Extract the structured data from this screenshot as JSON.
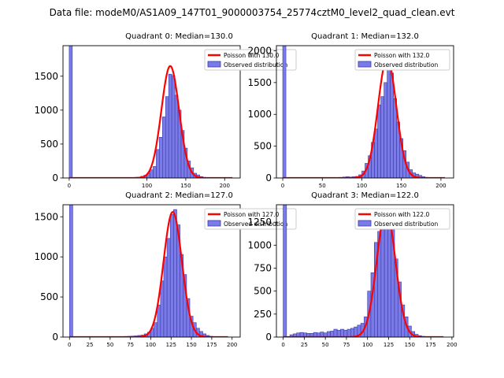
{
  "suptitle": "Data file: modeM0/AS1A09_147T01_9000003754_25774cztM0_level2_quad_clean.evt",
  "colors": {
    "hist_fill": "#7b7be8",
    "hist_edge": "#3a3aa8",
    "poisson": "#ff0000"
  },
  "chart_data": [
    {
      "type": "bar",
      "title": "Quadrant 0: Median=130.0",
      "legend": [
        "Poisson with 130.0",
        "Observed distribution"
      ],
      "legend_loc": "top-right",
      "xlim": [
        -8,
        220
      ],
      "ylim": [
        0,
        1950
      ],
      "xticks": [
        0,
        100,
        150,
        200
      ],
      "yticks": [
        0,
        500,
        1000,
        1500
      ],
      "mu": 130,
      "poisson_peak": 1650,
      "poisson_x": [
        0,
        210
      ],
      "bin_width": 4,
      "bins": [
        [
          0,
          1950
        ],
        [
          72,
          4
        ],
        [
          76,
          6
        ],
        [
          80,
          8
        ],
        [
          84,
          10
        ],
        [
          88,
          12
        ],
        [
          92,
          25
        ],
        [
          96,
          40
        ],
        [
          100,
          70
        ],
        [
          104,
          120
        ],
        [
          108,
          170
        ],
        [
          112,
          420
        ],
        [
          116,
          600
        ],
        [
          120,
          900
        ],
        [
          124,
          1200
        ],
        [
          128,
          1530
        ],
        [
          132,
          1510
        ],
        [
          136,
          1220
        ],
        [
          140,
          1000
        ],
        [
          144,
          700
        ],
        [
          148,
          440
        ],
        [
          152,
          250
        ],
        [
          156,
          150
        ],
        [
          160,
          70
        ],
        [
          164,
          45
        ],
        [
          168,
          20
        ],
        [
          172,
          10
        ],
        [
          176,
          6
        ]
      ]
    },
    {
      "type": "bar",
      "title": "Quadrant 1: Median=132.0",
      "legend": [
        "Poisson with 132.0",
        "Observed distribution"
      ],
      "legend_loc": "top-right",
      "xlim": [
        -8,
        216
      ],
      "ylim": [
        0,
        2080
      ],
      "xticks": [
        0,
        50,
        100,
        150,
        200
      ],
      "yticks": [
        0,
        500,
        1000,
        1500,
        2000
      ],
      "mu": 132,
      "poisson_peak": 1880,
      "poisson_x": [
        0,
        205
      ],
      "bin_width": 4,
      "bins": [
        [
          0,
          2080
        ],
        [
          72,
          10
        ],
        [
          76,
          15
        ],
        [
          80,
          20
        ],
        [
          84,
          15
        ],
        [
          88,
          20
        ],
        [
          92,
          25
        ],
        [
          96,
          50
        ],
        [
          100,
          110
        ],
        [
          104,
          230
        ],
        [
          108,
          350
        ],
        [
          112,
          560
        ],
        [
          116,
          770
        ],
        [
          120,
          1150
        ],
        [
          124,
          1280
        ],
        [
          128,
          1500
        ],
        [
          132,
          1700
        ],
        [
          136,
          1650
        ],
        [
          140,
          1250
        ],
        [
          144,
          880
        ],
        [
          148,
          620
        ],
        [
          152,
          430
        ],
        [
          156,
          250
        ],
        [
          160,
          130
        ],
        [
          164,
          80
        ],
        [
          168,
          60
        ],
        [
          172,
          40
        ],
        [
          176,
          20
        ],
        [
          180,
          10
        ]
      ]
    },
    {
      "type": "bar",
      "title": "Quadrant 2: Median=127.0",
      "legend": [
        "Poisson with 127.0",
        "Observed distribution"
      ],
      "legend_loc": "top-right",
      "xlim": [
        -8,
        210
      ],
      "ylim": [
        0,
        1650
      ],
      "xticks": [
        0,
        25,
        50,
        75,
        100,
        125,
        150,
        175,
        200
      ],
      "yticks": [
        0,
        500,
        1000,
        1500
      ],
      "mu": 127,
      "poisson_peak": 1560,
      "poisson_x": [
        0,
        195
      ],
      "bin_width": 4,
      "bins": [
        [
          0,
          1650
        ],
        [
          68,
          8
        ],
        [
          72,
          10
        ],
        [
          76,
          12
        ],
        [
          80,
          15
        ],
        [
          84,
          20
        ],
        [
          88,
          25
        ],
        [
          92,
          40
        ],
        [
          96,
          60
        ],
        [
          100,
          110
        ],
        [
          104,
          180
        ],
        [
          108,
          400
        ],
        [
          112,
          700
        ],
        [
          116,
          1000
        ],
        [
          120,
          1230
        ],
        [
          124,
          1530
        ],
        [
          128,
          1590
        ],
        [
          132,
          1400
        ],
        [
          136,
          1030
        ],
        [
          140,
          780
        ],
        [
          144,
          480
        ],
        [
          148,
          260
        ],
        [
          152,
          180
        ],
        [
          156,
          110
        ],
        [
          160,
          70
        ],
        [
          164,
          40
        ],
        [
          168,
          20
        ],
        [
          172,
          10
        ]
      ]
    },
    {
      "type": "bar",
      "title": "Quadrant 3: Median=122.0",
      "legend": [
        "Poisson with 122.0",
        "Observed distribution"
      ],
      "legend_loc": "top-right",
      "xlim": [
        -8,
        202
      ],
      "ylim": [
        0,
        1440
      ],
      "xticks": [
        0,
        25,
        50,
        75,
        100,
        125,
        150,
        175,
        200
      ],
      "yticks": [
        0,
        250,
        500,
        750,
        1000,
        1250
      ],
      "mu": 122,
      "poisson_peak": 1380,
      "poisson_x": [
        0,
        190
      ],
      "bin_width": 4,
      "bins": [
        [
          0,
          1440
        ],
        [
          8,
          25
        ],
        [
          12,
          35
        ],
        [
          16,
          45
        ],
        [
          20,
          50
        ],
        [
          24,
          45
        ],
        [
          28,
          40
        ],
        [
          32,
          40
        ],
        [
          36,
          50
        ],
        [
          40,
          45
        ],
        [
          44,
          55
        ],
        [
          48,
          45
        ],
        [
          52,
          60
        ],
        [
          56,
          65
        ],
        [
          60,
          85
        ],
        [
          64,
          75
        ],
        [
          68,
          85
        ],
        [
          72,
          75
        ],
        [
          76,
          85
        ],
        [
          80,
          95
        ],
        [
          84,
          110
        ],
        [
          88,
          130
        ],
        [
          92,
          150
        ],
        [
          96,
          220
        ],
        [
          100,
          500
        ],
        [
          104,
          700
        ],
        [
          108,
          1030
        ],
        [
          112,
          1150
        ],
        [
          116,
          1350
        ],
        [
          120,
          1320
        ],
        [
          124,
          1350
        ],
        [
          128,
          1250
        ],
        [
          132,
          850
        ],
        [
          136,
          600
        ],
        [
          140,
          350
        ],
        [
          144,
          220
        ],
        [
          148,
          120
        ],
        [
          152,
          60
        ],
        [
          156,
          30
        ],
        [
          160,
          15
        ],
        [
          164,
          8
        ]
      ]
    }
  ]
}
